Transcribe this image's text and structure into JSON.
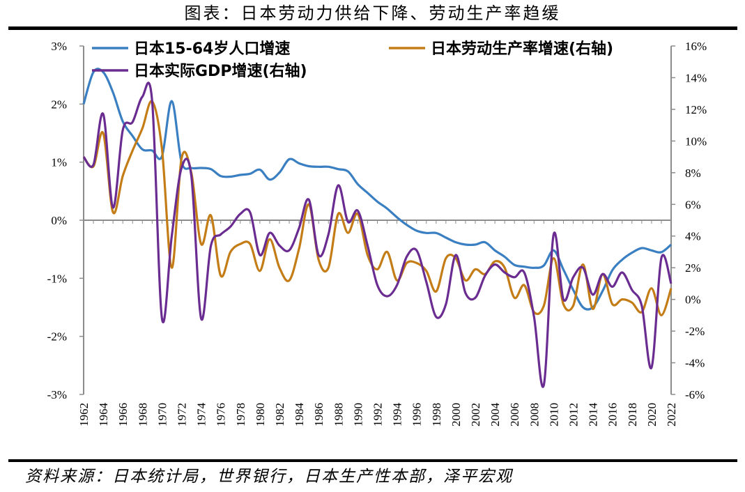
{
  "title": "图表：日本劳动力供给下降、劳动生产率趋缓",
  "source": "资料来源：日本统计局，世界银行，日本生产性本部，泽平宏观",
  "chart_data": {
    "type": "line",
    "x": [
      1962,
      1963,
      1964,
      1965,
      1966,
      1967,
      1968,
      1969,
      1970,
      1971,
      1972,
      1973,
      1974,
      1975,
      1976,
      1977,
      1978,
      1979,
      1980,
      1981,
      1982,
      1983,
      1984,
      1985,
      1986,
      1987,
      1988,
      1989,
      1990,
      1991,
      1992,
      1993,
      1994,
      1995,
      1996,
      1997,
      1998,
      1999,
      2000,
      2001,
      2002,
      2003,
      2004,
      2005,
      2006,
      2007,
      2008,
      2009,
      2010,
      2011,
      2012,
      2013,
      2014,
      2015,
      2016,
      2017,
      2018,
      2019,
      2020,
      2021,
      2022
    ],
    "x_ticks": [
      "1962",
      "1964",
      "1966",
      "1968",
      "1970",
      "1972",
      "1974",
      "1976",
      "1978",
      "1980",
      "1982",
      "1984",
      "1986",
      "1988",
      "1990",
      "1992",
      "1994",
      "1996",
      "1998",
      "2000",
      "2002",
      "2004",
      "2006",
      "2008",
      "2010",
      "2012",
      "2014",
      "2016",
      "2018",
      "2020",
      "2022"
    ],
    "y_left": {
      "ticks": [
        "3%",
        "2%",
        "1%",
        "0%",
        "-1%",
        "-2%",
        "-3%"
      ],
      "range": [
        -3,
        3
      ]
    },
    "y_right": {
      "ticks": [
        "16%",
        "14%",
        "12%",
        "10%",
        "8%",
        "6%",
        "4%",
        "2%",
        "0%",
        "-2%",
        "-4%",
        "-6%"
      ],
      "range": [
        -6,
        16
      ]
    },
    "series": [
      {
        "name": "日本15-64岁人口增速",
        "axis": "left",
        "color": "#3a7fc1",
        "values": [
          2.0,
          2.55,
          2.55,
          2.2,
          1.7,
          1.45,
          1.22,
          1.2,
          1.1,
          2.05,
          1.0,
          0.9,
          0.9,
          0.88,
          0.76,
          0.75,
          0.78,
          0.8,
          0.87,
          0.7,
          0.82,
          1.05,
          0.98,
          0.93,
          0.92,
          0.92,
          0.88,
          0.84,
          0.62,
          0.47,
          0.32,
          0.2,
          0.05,
          -0.08,
          -0.18,
          -0.22,
          -0.22,
          -0.3,
          -0.38,
          -0.42,
          -0.42,
          -0.38,
          -0.52,
          -0.63,
          -0.77,
          -0.8,
          -0.82,
          -0.78,
          -0.52,
          -0.85,
          -1.2,
          -1.5,
          -1.5,
          -1.22,
          -0.86,
          -0.68,
          -0.56,
          -0.48,
          -0.52,
          -0.55,
          -0.42
        ]
      },
      {
        "name": "日本劳动生产率增速(右轴)",
        "axis": "right",
        "color": "#c47d16",
        "values": [
          9.0,
          8.4,
          10.5,
          5.5,
          7.8,
          9.4,
          10.8,
          12.5,
          9.5,
          2.0,
          8.9,
          8.0,
          3.5,
          5.3,
          1.5,
          3.0,
          3.5,
          3.5,
          1.8,
          3.8,
          2.0,
          1.2,
          3.2,
          6.0,
          2.5,
          2.0,
          5.4,
          4.2,
          5.4,
          2.8,
          1.9,
          3.0,
          1.2,
          2.3,
          2.3,
          1.8,
          0.5,
          2.6,
          2.6,
          1.2,
          1.9,
          1.6,
          2.4,
          2.0,
          0.1,
          0.9,
          -0.8,
          -0.4,
          2.6,
          -0.3,
          -0.4,
          2.2,
          -0.6,
          1.6,
          -0.3,
          0.0,
          -0.2,
          -0.8,
          0.7,
          -1.0,
          0.7
        ]
      },
      {
        "name": "日本实际GDP增速(右轴)",
        "axis": "right",
        "color": "#6a2c91",
        "values": [
          9.0,
          8.5,
          11.7,
          5.8,
          10.7,
          11.2,
          12.8,
          12.5,
          -1.2,
          4.0,
          8.3,
          7.8,
          -1.2,
          3.4,
          4.1,
          4.6,
          5.4,
          5.5,
          2.8,
          4.2,
          3.4,
          3.1,
          4.5,
          6.3,
          2.8,
          4.1,
          7.2,
          4.9,
          5.6,
          3.4,
          0.9,
          0.2,
          0.9,
          2.7,
          3.1,
          1.1,
          -1.1,
          -0.3,
          2.8,
          0.4,
          0.1,
          1.5,
          2.2,
          1.7,
          1.4,
          1.7,
          -1.1,
          -5.4,
          4.1,
          0.0,
          1.4,
          2.0,
          0.3,
          1.6,
          0.8,
          1.7,
          0.6,
          -0.4,
          -4.3,
          2.6,
          1.0
        ]
      }
    ]
  }
}
